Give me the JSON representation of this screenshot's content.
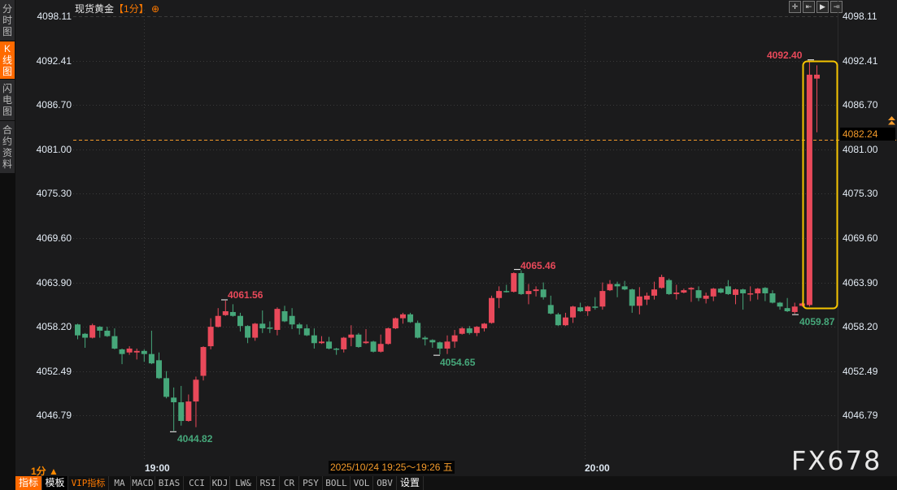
{
  "sidebar": {
    "items": [
      {
        "label": "分时图",
        "active": false
      },
      {
        "label": "K线图",
        "active": true
      },
      {
        "label": "闪电图",
        "active": false
      },
      {
        "label": "合约资料",
        "active": false
      }
    ]
  },
  "header": {
    "instrument": "现货黄金",
    "period": "【1分】",
    "add_icon": "circle-plus-icon"
  },
  "chart_tools": [
    "crosshair-icon",
    "zoom-range-icon",
    "play-range-icon",
    "move-right-icon"
  ],
  "colors": {
    "up": "#e9495a",
    "down": "#46a77a",
    "accent": "#ff6a00",
    "last_price": "#f39a2a",
    "highlight_box": "#f5c400"
  },
  "last_price": "4082.24",
  "time_bar": {
    "period": "1分 ▲",
    "ticks": [
      "19:00",
      "20:00"
    ],
    "crosshair_time": "2025/10/24 19:25～19:26 五"
  },
  "toolbar": {
    "items": [
      "指标",
      "模板",
      "VIP指标",
      "MA",
      "MACD",
      "BIAS",
      "CCI",
      "KDJ",
      "LW&",
      "RSI",
      "CR",
      "PSY",
      "BOLL",
      "VOL",
      "OBV",
      "设置"
    ]
  },
  "watermark": "FX678",
  "chart_data": {
    "type": "candlestick",
    "y_ticks": [
      "4098.11",
      "4092.41",
      "4086.70",
      "4081.00",
      "4075.30",
      "4069.60",
      "4063.90",
      "4058.20",
      "4052.49",
      "4046.79"
    ],
    "ylim": [
      4046.79,
      4098.11
    ],
    "x_ticks": [
      "19:00",
      "20:00"
    ],
    "grid": true,
    "annotations": [
      {
        "text": "4061.56",
        "type": "high"
      },
      {
        "text": "4044.82",
        "type": "low"
      },
      {
        "text": "4054.65",
        "type": "low"
      },
      {
        "text": "4065.46",
        "type": "high"
      },
      {
        "text": "4092.40",
        "type": "high"
      },
      {
        "text": "4059.87",
        "type": "low"
      }
    ],
    "columns": [
      "time",
      "open",
      "high",
      "low",
      "close"
    ],
    "candles": [
      [
        "18:51",
        4058.5,
        4058.6,
        4056.6,
        4057.1
      ],
      [
        "18:52",
        4057.3,
        4057.4,
        4055.5,
        4056.8
      ],
      [
        "18:53",
        4056.8,
        4058.6,
        4056.7,
        4058.4
      ],
      [
        "18:54",
        4058.2,
        4058.3,
        4056.8,
        4057.7
      ],
      [
        "18:55",
        4057.7,
        4058.2,
        4056.9,
        4057.0
      ],
      [
        "18:56",
        4057.0,
        4058.0,
        4055.3,
        4055.4
      ],
      [
        "18:57",
        4055.3,
        4055.4,
        4053.4,
        4054.7
      ],
      [
        "18:58",
        4054.9,
        4055.7,
        4054.6,
        4055.4
      ],
      [
        "18:59",
        4054.9,
        4055.4,
        4054.0,
        4055.1
      ],
      [
        "19:00",
        4055.1,
        4055.3,
        4053.7,
        4054.7
      ],
      [
        "19:01",
        4054.7,
        4057.7,
        4053.4,
        4053.5
      ],
      [
        "19:02",
        4053.9,
        4054.9,
        4051.5,
        4051.6
      ],
      [
        "19:03",
        4051.6,
        4052.5,
        4049.0,
        4049.2
      ],
      [
        "19:04",
        4049.1,
        4050.4,
        4044.82,
        4048.5
      ],
      [
        "19:05",
        4048.5,
        4050.6,
        4045.5,
        4046.1
      ],
      [
        "19:06",
        4046.1,
        4049.5,
        4046.0,
        4048.6
      ],
      [
        "19:07",
        4048.6,
        4051.8,
        4045.3,
        4051.4
      ],
      [
        "19:08",
        4051.9,
        4055.7,
        4051.3,
        4055.6
      ],
      [
        "19:09",
        4055.7,
        4059.3,
        4055.3,
        4058.2
      ],
      [
        "19:10",
        4058.2,
        4060.6,
        4058.1,
        4059.6
      ],
      [
        "19:11",
        4059.7,
        4061.56,
        4059.6,
        4060.2
      ],
      [
        "19:12",
        4060.1,
        4061.1,
        4059.5,
        4059.6
      ],
      [
        "19:13",
        4059.6,
        4060.0,
        4057.6,
        4058.3
      ],
      [
        "19:14",
        4058.3,
        4058.4,
        4056.1,
        4056.8
      ],
      [
        "19:15",
        4056.8,
        4058.7,
        4056.4,
        4058.6
      ],
      [
        "19:16",
        4058.6,
        4060.3,
        4057.4,
        4058.0
      ],
      [
        "19:17",
        4058.1,
        4058.9,
        4057.4,
        4058.0
      ],
      [
        "19:18",
        4057.8,
        4060.7,
        4057.1,
        4060.5
      ],
      [
        "19:19",
        4060.2,
        4060.9,
        4058.8,
        4058.9
      ],
      [
        "19:20",
        4059.6,
        4060.6,
        4057.9,
        4058.5
      ],
      [
        "19:21",
        4058.5,
        4058.7,
        4057.2,
        4058.0
      ],
      [
        "19:22",
        4058.0,
        4058.5,
        4057.0,
        4057.1
      ],
      [
        "19:23",
        4057.1,
        4058.0,
        4055.4,
        4056.1
      ],
      [
        "19:24",
        4056.1,
        4057.0,
        4056.0,
        4056.3
      ],
      [
        "19:25",
        4056.3,
        4056.9,
        4055.3,
        4055.4
      ],
      [
        "19:26",
        4055.4,
        4055.5,
        4054.6,
        4055.3
      ],
      [
        "19:27",
        4055.3,
        4056.9,
        4054.9,
        4056.8
      ],
      [
        "19:28",
        4056.8,
        4058.4,
        4055.7,
        4057.2
      ],
      [
        "19:29",
        4057.2,
        4057.4,
        4055.5,
        4055.6
      ],
      [
        "19:30",
        4056.1,
        4057.9,
        4056.0,
        4056.3
      ],
      [
        "19:31",
        4056.3,
        4056.4,
        4054.9,
        4055.0
      ],
      [
        "19:32",
        4055.0,
        4057.2,
        4054.9,
        4056.0
      ],
      [
        "19:33",
        4056.0,
        4058.1,
        4055.9,
        4058.0
      ],
      [
        "19:34",
        4058.0,
        4059.4,
        4057.9,
        4059.3
      ],
      [
        "19:35",
        4059.3,
        4060.0,
        4058.6,
        4059.8
      ],
      [
        "19:36",
        4059.8,
        4060.0,
        4058.7,
        4058.8
      ],
      [
        "19:37",
        4058.7,
        4059.0,
        4056.7,
        4056.8
      ],
      [
        "19:38",
        4056.8,
        4057.0,
        4055.8,
        4056.6
      ],
      [
        "19:39",
        4056.5,
        4056.6,
        4055.5,
        4056.2
      ],
      [
        "19:40",
        4056.2,
        4056.3,
        4054.65,
        4055.4
      ],
      [
        "19:41",
        4055.4,
        4057.1,
        4054.7,
        4056.3
      ],
      [
        "19:42",
        4056.3,
        4057.8,
        4055.5,
        4057.1
      ],
      [
        "19:43",
        4057.3,
        4058.2,
        4057.2,
        4058.0
      ],
      [
        "19:44",
        4058.0,
        4058.3,
        4057.2,
        4057.4
      ],
      [
        "19:45",
        4057.4,
        4058.3,
        4057.0,
        4058.2
      ],
      [
        "19:46",
        4058.0,
        4058.7,
        4057.6,
        4058.6
      ],
      [
        "19:47",
        4058.7,
        4062.2,
        4058.6,
        4061.9
      ],
      [
        "19:48",
        4061.9,
        4063.4,
        4060.6,
        4062.8
      ],
      [
        "19:49",
        4062.8,
        4063.6,
        4062.6,
        4062.7
      ],
      [
        "19:50",
        4062.7,
        4065.2,
        4062.6,
        4065.1
      ],
      [
        "19:51",
        4065.1,
        4065.46,
        4062.3,
        4062.4
      ],
      [
        "19:52",
        4062.4,
        4063.7,
        4061.1,
        4062.8
      ],
      [
        "19:53",
        4062.8,
        4063.4,
        4062.1,
        4063.0
      ],
      [
        "19:54",
        4063.0,
        4063.9,
        4061.7,
        4062.0
      ],
      [
        "19:55",
        4061.0,
        4062.2,
        4059.8,
        4059.9
      ],
      [
        "19:56",
        4059.8,
        4060.0,
        4058.3,
        4058.4
      ],
      [
        "19:57",
        4058.4,
        4060.0,
        4058.3,
        4059.4
      ],
      [
        "19:58",
        4059.4,
        4060.9,
        4058.7,
        4060.8
      ],
      [
        "19:59",
        4060.7,
        4061.3,
        4060.1,
        4060.2
      ],
      [
        "20:00",
        4060.2,
        4060.9,
        4059.6,
        4060.8
      ],
      [
        "20:01",
        4060.8,
        4062.0,
        4060.4,
        4060.7
      ],
      [
        "20:02",
        4060.8,
        4063.9,
        4060.4,
        4062.8
      ],
      [
        "20:03",
        4062.9,
        4064.2,
        4062.8,
        4063.7
      ],
      [
        "20:04",
        4063.7,
        4064.0,
        4062.0,
        4063.4
      ],
      [
        "20:05",
        4063.4,
        4064.1,
        4062.9,
        4063.0
      ],
      [
        "20:06",
        4063.0,
        4063.1,
        4060.0,
        4060.9
      ],
      [
        "20:07",
        4060.9,
        4063.3,
        4059.8,
        4062.1
      ],
      [
        "20:08",
        4061.7,
        4062.6,
        4061.0,
        4062.2
      ],
      [
        "20:09",
        4062.2,
        4064.0,
        4061.7,
        4063.0
      ],
      [
        "20:10",
        4063.2,
        4064.9,
        4063.1,
        4064.6
      ],
      [
        "20:11",
        4064.2,
        4064.4,
        4062.3,
        4062.4
      ],
      [
        "20:12",
        4062.4,
        4063.6,
        4061.7,
        4062.6
      ],
      [
        "20:13",
        4062.6,
        4063.1,
        4062.5,
        4062.9
      ],
      [
        "20:14",
        4063.0,
        4063.3,
        4061.4,
        4063.2
      ],
      [
        "20:15",
        4062.9,
        4063.4,
        4061.5,
        4061.9
      ],
      [
        "20:16",
        4061.8,
        4062.6,
        4061.2,
        4062.2
      ],
      [
        "20:17",
        4062.1,
        4063.2,
        4061.5,
        4063.1
      ],
      [
        "20:18",
        4063.1,
        4063.2,
        4062.5,
        4062.6
      ],
      [
        "20:19",
        4063.4,
        4064.2,
        4062.3,
        4062.4
      ],
      [
        "20:20",
        4062.3,
        4063.1,
        4061.1,
        4063.0
      ],
      [
        "20:21",
        4063.0,
        4063.1,
        4060.4,
        4062.5
      ],
      [
        "20:22",
        4062.4,
        4063.4,
        4061.5,
        4062.5
      ],
      [
        "20:23",
        4062.5,
        4063.2,
        4061.7,
        4063.1
      ],
      [
        "20:24",
        4063.2,
        4063.3,
        4061.5,
        4062.5
      ],
      [
        "20:25",
        4062.5,
        4062.9,
        4061.2,
        4061.3
      ],
      [
        "20:26",
        4061.3,
        4061.4,
        4060.4,
        4060.8
      ],
      [
        "20:27",
        4060.6,
        4061.9,
        4060.1,
        4060.2
      ],
      [
        "20:28",
        4060.1,
        4061.3,
        4059.87,
        4060.8
      ],
      [
        "20:29",
        4060.9,
        4061.3,
        4060.8,
        4061.2
      ],
      [
        "20:30",
        4061.0,
        4092.4,
        4060.8,
        4090.6
      ],
      [
        "20:31",
        4090.1,
        4091.8,
        4083.2,
        4090.6
      ]
    ]
  }
}
